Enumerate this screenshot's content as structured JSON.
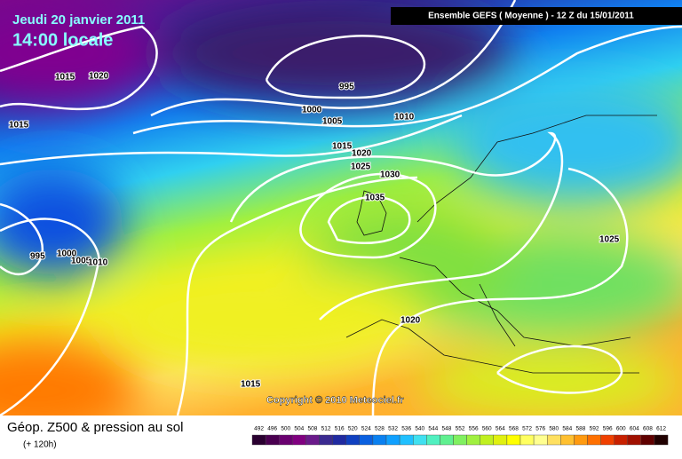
{
  "header": {
    "date": "Jeudi 20 janvier 2011",
    "time": "14:00 locale",
    "model": "Ensemble GEFS ( Moyenne )  -  12 Z du 15/01/2011"
  },
  "isobar_labels": [
    "1015",
    "1020",
    "1015",
    "995",
    "1000",
    "1005",
    "1010",
    "1015",
    "1020",
    "1025",
    "1030",
    "1035",
    "995",
    "1000",
    "1005",
    "1010",
    "1025",
    "1020",
    "1015"
  ],
  "copyright": "Copyright © 2010 Meteociel.fr",
  "footer": {
    "title": "Géop. Z500 & pression au sol",
    "subtitle": "(+ 120h)"
  },
  "legend": {
    "ticks": [
      492,
      496,
      500,
      504,
      508,
      512,
      516,
      520,
      524,
      528,
      532,
      536,
      540,
      544,
      548,
      552,
      556,
      560,
      564,
      568,
      572,
      576,
      580,
      584,
      588,
      592,
      596,
      600,
      604,
      608,
      612
    ],
    "colors": [
      "#2a0030",
      "#4a0050",
      "#6a0070",
      "#800080",
      "#6a1a8a",
      "#3a2a90",
      "#202aa0",
      "#1040c0",
      "#0a60e0",
      "#0a80f0",
      "#10a0ff",
      "#20c0ff",
      "#40e0f0",
      "#50f0c0",
      "#60f090",
      "#80f060",
      "#a0f040",
      "#c0f020",
      "#e0f010",
      "#ffff00",
      "#ffff60",
      "#ffff90",
      "#ffe060",
      "#ffc030",
      "#ff9a10",
      "#ff7000",
      "#f04000",
      "#c82000",
      "#a01000",
      "#600000",
      "#200000"
    ]
  }
}
